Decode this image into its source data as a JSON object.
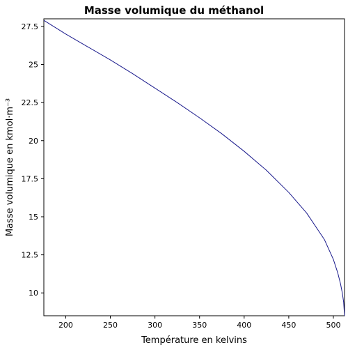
{
  "chart_data": {
    "type": "line",
    "title": "Masse volumique du méthanol",
    "xlabel": "Température en kelvins",
    "ylabel": "Masse volumique en kmol·m⁻³",
    "xlim": [
      175.47,
      512.5
    ],
    "ylim": [
      8.5,
      28.0
    ],
    "xticks": [
      200,
      250,
      300,
      350,
      400,
      450,
      500
    ],
    "xtick_labels": [
      "200",
      "250",
      "300",
      "350",
      "400",
      "450",
      "500"
    ],
    "yticks": [
      10,
      12.5,
      15,
      17.5,
      20,
      22.5,
      25,
      27.5
    ],
    "ytick_labels": [
      "10",
      "12.5",
      "15",
      "17.5",
      "20",
      "22.5",
      "25",
      "27.5"
    ],
    "grid": false,
    "series": [
      {
        "color": "#1a1a8c",
        "x": [
          175.47,
          200,
          225,
          250,
          275,
          300,
          325,
          350,
          375,
          400,
          425,
          450,
          470,
          490,
          500,
          505,
          508,
          510,
          511.5,
          512.5
        ],
        "y": [
          27.9,
          27.0,
          26.15,
          25.3,
          24.4,
          23.45,
          22.5,
          21.5,
          20.45,
          19.3,
          18.05,
          16.6,
          15.25,
          13.5,
          12.2,
          11.3,
          10.6,
          10.0,
          9.4,
          8.5
        ]
      }
    ]
  }
}
